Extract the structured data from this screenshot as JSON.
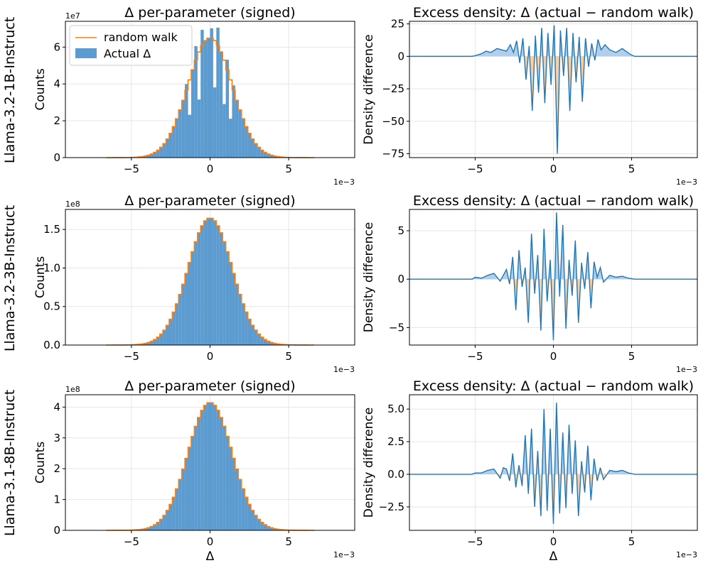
{
  "figure": {
    "row_labels": [
      "Llama-3.2-1B-Instruct",
      "Llama-3.2-3B-Instruct",
      "Llama-3.1-8B-Instruct"
    ],
    "x_exponent": "1e−3",
    "x_label": "Δ"
  },
  "colors": {
    "hist": "#5b9bd0",
    "walk": "#ff7f0e",
    "diff_line": "#1f77b4",
    "pos_fill": "#9dc3e6",
    "neg_fill": "#f9c99a"
  },
  "chart_data": [
    {
      "type": "bar",
      "title": "Δ per-parameter (signed)",
      "ylabel": "Counts",
      "y_exponent": "1e7",
      "xlim": [
        -9.2,
        9.2
      ],
      "ylim": [
        0,
        7.4
      ],
      "xticks": [
        -5,
        0,
        5
      ],
      "yticks": [
        0,
        2,
        4,
        6
      ],
      "legend": {
        "position": "top-left",
        "entries": [
          "random walk",
          "Actual Δ"
        ]
      },
      "spikes": [
        [
          -1.5,
          0.82
        ],
        [
          -0.95,
          0.9
        ],
        [
          -0.45,
          0.9
        ],
        [
          0.05,
          1.1
        ],
        [
          0.55,
          0.92
        ],
        [
          1.05,
          0.86
        ],
        [
          1.55,
          0.8
        ]
      ],
      "dips": [
        [
          -1.25,
          0.55
        ],
        [
          -0.7,
          0.55
        ],
        [
          -0.2,
          0.6
        ],
        [
          0.3,
          0.6
        ],
        [
          0.8,
          0.55
        ],
        [
          1.3,
          0.5
        ]
      ],
      "walk_peak": 6.5,
      "sigma": 1.4,
      "bin_width": 0.2
    },
    {
      "type": "line",
      "title": "Excess density: Δ (actual − random walk)",
      "ylabel": "Density difference",
      "xlim": [
        -9.2,
        9.2
      ],
      "ylim": [
        -78,
        27
      ],
      "xticks": [
        -5,
        0,
        5
      ],
      "yticks": [
        -75,
        -50,
        -25,
        0,
        25
      ],
      "series": [
        {
          "x": [
            -9.2,
            -5.2,
            -5.0,
            -4.6,
            -4.3,
            -4.0,
            -3.6,
            -3.3,
            -3.0,
            -2.75,
            -2.55,
            -2.35,
            -2.15,
            -1.95,
            -1.75,
            -1.55,
            -1.35,
            -1.15,
            -0.95,
            -0.75,
            -0.55,
            -0.35,
            -0.15,
            0.05,
            0.25,
            0.45,
            0.65,
            0.85,
            1.05,
            1.25,
            1.45,
            1.65,
            1.85,
            2.05,
            2.25,
            2.45,
            2.65,
            2.85,
            3.05,
            3.3,
            3.6,
            4.0,
            4.4,
            4.8,
            5.0,
            5.2,
            9.2
          ],
          "values": [
            0,
            0,
            0.5,
            2,
            4,
            3,
            6,
            5,
            4,
            9,
            3,
            12,
            -5,
            14,
            -18,
            8,
            -42,
            16,
            -28,
            22,
            -36,
            18,
            -22,
            24,
            -75,
            20,
            -15,
            22,
            -42,
            18,
            -20,
            15,
            -35,
            14,
            -8,
            10,
            -3,
            13,
            5,
            9,
            5,
            3,
            6,
            2.5,
            1,
            0,
            0
          ]
        }
      ]
    },
    {
      "type": "bar",
      "title": "Δ per-parameter (signed)",
      "ylabel": "Counts",
      "y_exponent": "1e8",
      "xlim": [
        -9.2,
        9.2
      ],
      "ylim": [
        0,
        1.76
      ],
      "xticks": [
        -5,
        0,
        5
      ],
      "yticks": [
        0.0,
        0.5,
        1.0,
        1.5
      ],
      "walk_peak": 1.65,
      "sigma": 1.4,
      "bin_width": 0.2
    },
    {
      "type": "line",
      "title": "Excess density: Δ (actual − random walk)",
      "ylabel": "Density difference",
      "xlim": [
        -9.2,
        9.2
      ],
      "ylim": [
        -6.8,
        7.2
      ],
      "xticks": [
        -5,
        0,
        5
      ],
      "yticks": [
        -5,
        0,
        5
      ],
      "series": [
        {
          "x": [
            -9.2,
            -5.2,
            -5.0,
            -4.6,
            -4.2,
            -3.8,
            -3.4,
            -3.2,
            -3.0,
            -2.8,
            -2.6,
            -2.4,
            -2.2,
            -2.0,
            -1.8,
            -1.6,
            -1.4,
            -1.2,
            -1.0,
            -0.8,
            -0.6,
            -0.4,
            -0.2,
            0.0,
            0.2,
            0.4,
            0.6,
            0.8,
            1.0,
            1.2,
            1.4,
            1.6,
            1.8,
            2.0,
            2.2,
            2.4,
            2.6,
            2.8,
            3.0,
            3.2,
            3.6,
            4.0,
            4.4,
            4.8,
            5.2,
            9.2
          ],
          "values": [
            0,
            0,
            0.2,
            0.1,
            0.4,
            0.6,
            -0.2,
            0.4,
            1.0,
            -0.5,
            2.3,
            -3.2,
            3.0,
            -0.8,
            1.2,
            -4.5,
            4.7,
            -1.5,
            2.5,
            -5.3,
            5.2,
            -2.3,
            2.0,
            -6.3,
            6.9,
            -1.8,
            5.6,
            -5.1,
            2.0,
            -1.7,
            4.0,
            -4.5,
            1.7,
            -1.0,
            2.8,
            -3.0,
            1.8,
            0.2,
            1.2,
            -0.3,
            0.4,
            0.2,
            0.3,
            0.1,
            0,
            0
          ]
        }
      ]
    },
    {
      "type": "bar",
      "title": "Δ per-parameter (signed)",
      "ylabel": "Counts",
      "y_exponent": "1e8",
      "xlim": [
        -9.2,
        9.2
      ],
      "ylim": [
        0,
        4.4
      ],
      "xticks": [
        -5,
        0,
        5
      ],
      "yticks": [
        0,
        1,
        2,
        3,
        4
      ],
      "walk_peak": 4.15,
      "sigma": 1.4,
      "bin_width": 0.2
    },
    {
      "type": "line",
      "title": "Excess density: Δ (actual − random walk)",
      "ylabel": "Density difference",
      "xlim": [
        -9.2,
        9.2
      ],
      "ylim": [
        -4.3,
        6.1
      ],
      "xticks": [
        -5,
        0,
        5
      ],
      "yticks": [
        -2.5,
        0.0,
        2.5,
        5.0
      ],
      "series": [
        {
          "x": [
            -9.2,
            -5.2,
            -5.0,
            -4.6,
            -4.2,
            -3.8,
            -3.4,
            -3.2,
            -3.0,
            -2.8,
            -2.6,
            -2.4,
            -2.2,
            -2.0,
            -1.8,
            -1.6,
            -1.4,
            -1.2,
            -1.0,
            -0.8,
            -0.6,
            -0.4,
            -0.2,
            0.0,
            0.2,
            0.4,
            0.6,
            0.8,
            1.0,
            1.2,
            1.4,
            1.6,
            1.8,
            2.0,
            2.2,
            2.4,
            2.6,
            2.8,
            3.0,
            3.2,
            3.6,
            4.0,
            4.4,
            4.8,
            5.2,
            9.2
          ],
          "values": [
            0,
            0,
            0.1,
            0.1,
            0.3,
            0.4,
            -0.3,
            0.5,
            0.4,
            -0.5,
            1.6,
            -1.0,
            0.7,
            -0.9,
            3.0,
            -1.5,
            3.5,
            -2.5,
            1.8,
            -3.2,
            5.0,
            -2.8,
            3.5,
            -3.8,
            5.5,
            -3.0,
            3.2,
            -2.6,
            3.8,
            -1.5,
            2.6,
            -3.2,
            1.0,
            -1.4,
            2.2,
            -2.0,
            1.2,
            -0.5,
            0.5,
            -0.4,
            0.3,
            0.2,
            0.3,
            0.1,
            0,
            0
          ]
        }
      ]
    }
  ]
}
